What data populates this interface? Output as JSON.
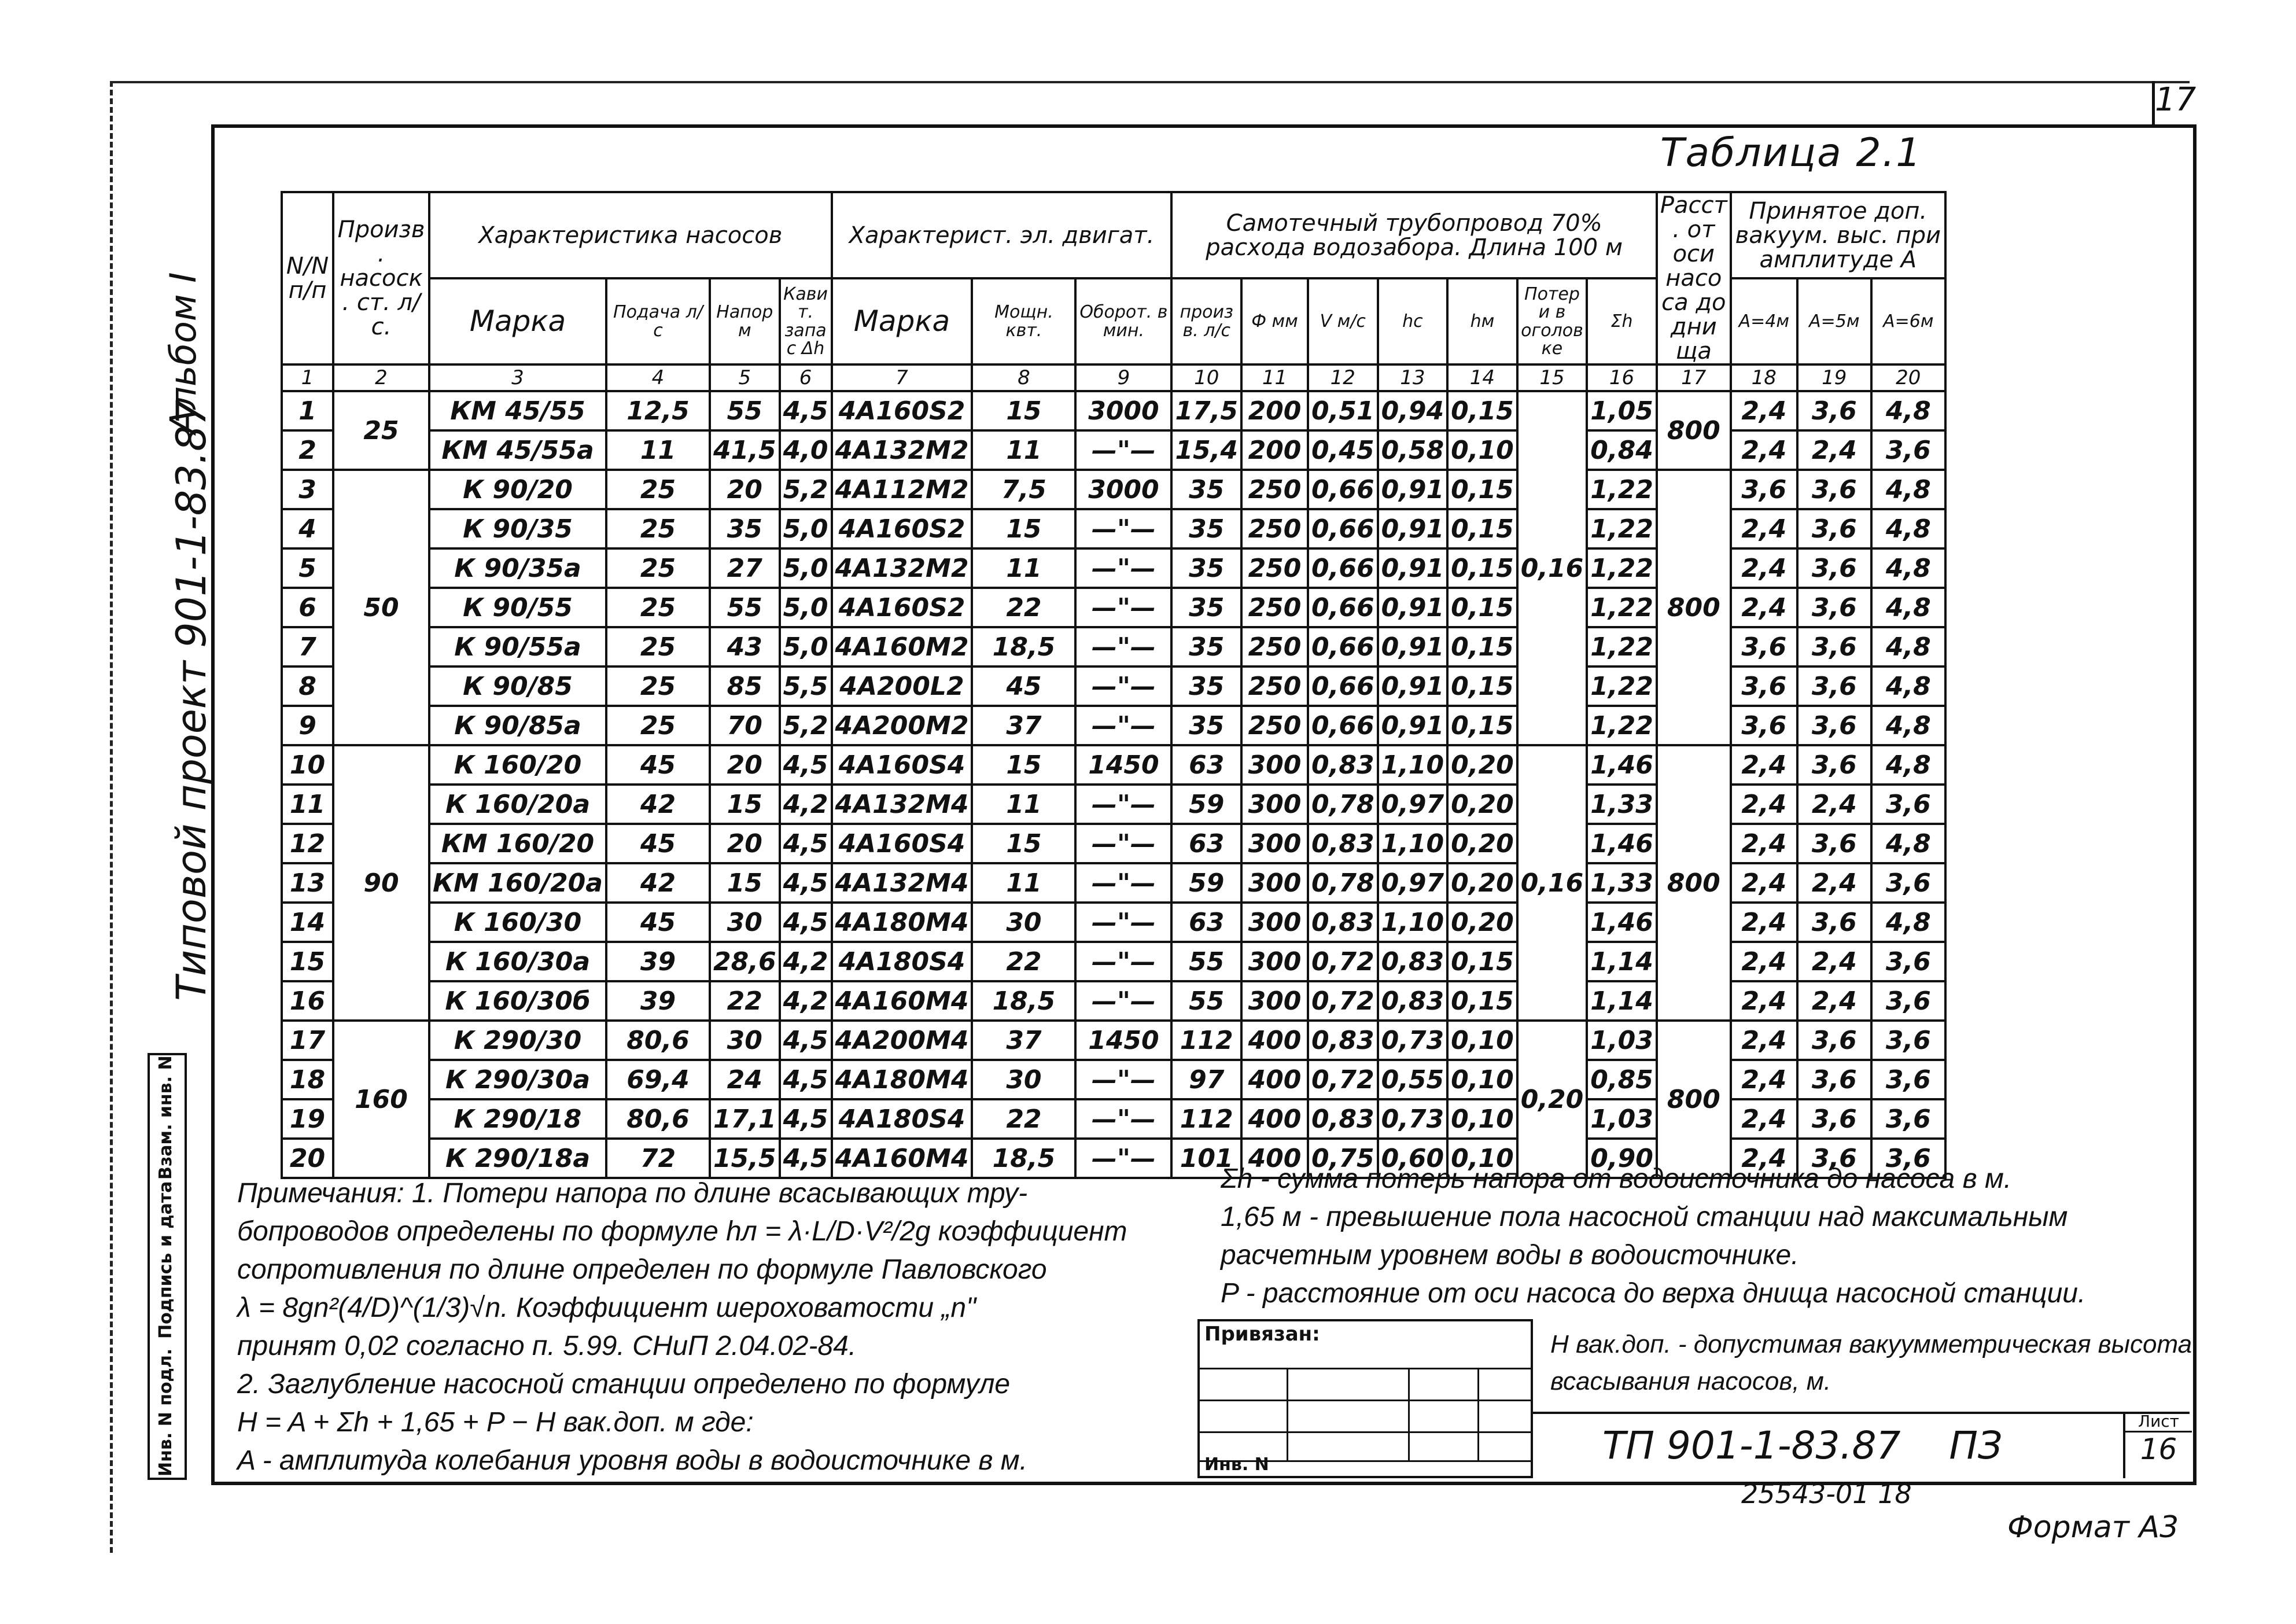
{
  "page_number": "17",
  "table_title": "Таблица 2.1",
  "side": {
    "album": "Альбом I",
    "project": "Типовой проект 901-1-83.87",
    "stamp": [
      "Инв. N подл.",
      "Подпись и дата",
      "Взам. инв. N"
    ]
  },
  "headers": {
    "col1": "N/N п/п",
    "col2": "Произв. насоск. ст. л/с.",
    "pumps": "Характеристика насосов",
    "motor": "Характерист. эл. двигат.",
    "pipe": "Самотечный трубопровод 70% расхода водозабора. Длина 100 м",
    "col17": "Расст. от оси насоса до днища",
    "vac": "Принятое доп. вакуум. выс. при амплитуде А",
    "sub": [
      "Марка",
      "Подача л/с",
      "Напор м",
      "Кавит. запас Δh",
      "Марка",
      "Мощн. квт.",
      "Оборот. в мин.",
      "произв. л/с",
      "Ф мм",
      "V м/с",
      "hс",
      "hм",
      "Потери в оголовке",
      "Σh",
      "А=4м",
      "А=5м",
      "А=6м"
    ],
    "numbers": [
      "1",
      "2",
      "3",
      "4",
      "5",
      "6",
      "7",
      "8",
      "9",
      "10",
      "11",
      "12",
      "13",
      "14",
      "15",
      "16",
      "17",
      "18",
      "19",
      "20"
    ]
  },
  "groups": [
    {
      "capacity": "25",
      "loss": "0,16",
      "distance": "800",
      "rows": [
        [
          "1",
          "КМ 45/55",
          "12,5",
          "55",
          "4,5",
          "4А160S2",
          "15",
          "3000",
          "17,5",
          "200",
          "0,51",
          "0,94",
          "0,15",
          "1,05",
          "2,4",
          "3,6",
          "4,8"
        ],
        [
          "2",
          "КМ 45/55а",
          "11",
          "41,5",
          "4,0",
          "4А132М2",
          "11",
          "—\"—",
          "15,4",
          "200",
          "0,45",
          "0,58",
          "0,10",
          "0,84",
          "2,4",
          "2,4",
          "3,6"
        ]
      ]
    },
    {
      "capacity": "50",
      "loss": "",
      "distance": "800",
      "rows": [
        [
          "3",
          "К 90/20",
          "25",
          "20",
          "5,2",
          "4А112М2",
          "7,5",
          "3000",
          "35",
          "250",
          "0,66",
          "0,91",
          "0,15",
          "1,22",
          "3,6",
          "3,6",
          "4,8"
        ],
        [
          "4",
          "К 90/35",
          "25",
          "35",
          "5,0",
          "4А160S2",
          "15",
          "—\"—",
          "35",
          "250",
          "0,66",
          "0,91",
          "0,15",
          "1,22",
          "2,4",
          "3,6",
          "4,8"
        ],
        [
          "5",
          "К 90/35а",
          "25",
          "27",
          "5,0",
          "4А132М2",
          "11",
          "—\"—",
          "35",
          "250",
          "0,66",
          "0,91",
          "0,15",
          "1,22",
          "2,4",
          "3,6",
          "4,8"
        ],
        [
          "6",
          "К 90/55",
          "25",
          "55",
          "5,0",
          "4А160S2",
          "22",
          "—\"—",
          "35",
          "250",
          "0,66",
          "0,91",
          "0,15",
          "1,22",
          "2,4",
          "3,6",
          "4,8"
        ],
        [
          "7",
          "К 90/55а",
          "25",
          "43",
          "5,0",
          "4А160М2",
          "18,5",
          "—\"—",
          "35",
          "250",
          "0,66",
          "0,91",
          "0,15",
          "1,22",
          "3,6",
          "3,6",
          "4,8"
        ],
        [
          "8",
          "К 90/85",
          "25",
          "85",
          "5,5",
          "4А200L2",
          "45",
          "—\"—",
          "35",
          "250",
          "0,66",
          "0,91",
          "0,15",
          "1,22",
          "3,6",
          "3,6",
          "4,8"
        ],
        [
          "9",
          "К 90/85а",
          "25",
          "70",
          "5,2",
          "4А200М2",
          "37",
          "—\"—",
          "35",
          "250",
          "0,66",
          "0,91",
          "0,15",
          "1,22",
          "3,6",
          "3,6",
          "4,8"
        ]
      ]
    },
    {
      "capacity": "90",
      "loss": "0,16",
      "distance": "800",
      "rows": [
        [
          "10",
          "К 160/20",
          "45",
          "20",
          "4,5",
          "4А160S4",
          "15",
          "1450",
          "63",
          "300",
          "0,83",
          "1,10",
          "0,20",
          "1,46",
          "2,4",
          "3,6",
          "4,8"
        ],
        [
          "11",
          "К 160/20а",
          "42",
          "15",
          "4,2",
          "4А132М4",
          "11",
          "—\"—",
          "59",
          "300",
          "0,78",
          "0,97",
          "0,20",
          "1,33",
          "2,4",
          "2,4",
          "3,6"
        ],
        [
          "12",
          "КМ 160/20",
          "45",
          "20",
          "4,5",
          "4А160S4",
          "15",
          "—\"—",
          "63",
          "300",
          "0,83",
          "1,10",
          "0,20",
          "1,46",
          "2,4",
          "3,6",
          "4,8"
        ],
        [
          "13",
          "КМ 160/20а",
          "42",
          "15",
          "4,5",
          "4А132М4",
          "11",
          "—\"—",
          "59",
          "300",
          "0,78",
          "0,97",
          "0,20",
          "1,33",
          "2,4",
          "2,4",
          "3,6"
        ],
        [
          "14",
          "К 160/30",
          "45",
          "30",
          "4,5",
          "4А180М4",
          "30",
          "—\"—",
          "63",
          "300",
          "0,83",
          "1,10",
          "0,20",
          "1,46",
          "2,4",
          "3,6",
          "4,8"
        ],
        [
          "15",
          "К 160/30а",
          "39",
          "28,6",
          "4,2",
          "4А180S4",
          "22",
          "—\"—",
          "55",
          "300",
          "0,72",
          "0,83",
          "0,15",
          "1,14",
          "2,4",
          "2,4",
          "3,6"
        ],
        [
          "16",
          "К 160/30б",
          "39",
          "22",
          "4,2",
          "4А160М4",
          "18,5",
          "—\"—",
          "55",
          "300",
          "0,72",
          "0,83",
          "0,15",
          "1,14",
          "2,4",
          "2,4",
          "3,6"
        ]
      ]
    },
    {
      "capacity": "160",
      "loss": "0,20",
      "distance": "800",
      "rows": [
        [
          "17",
          "К 290/30",
          "80,6",
          "30",
          "4,5",
          "4А200М4",
          "37",
          "1450",
          "112",
          "400",
          "0,83",
          "0,73",
          "0,10",
          "1,03",
          "2,4",
          "3,6",
          "3,6"
        ],
        [
          "18",
          "К 290/30а",
          "69,4",
          "24",
          "4,5",
          "4А180М4",
          "30",
          "—\"—",
          "97",
          "400",
          "0,72",
          "0,55",
          "0,10",
          "0,85",
          "2,4",
          "3,6",
          "3,6"
        ],
        [
          "19",
          "К 290/18",
          "80,6",
          "17,1",
          "4,5",
          "4А180S4",
          "22",
          "—\"—",
          "112",
          "400",
          "0,83",
          "0,73",
          "0,10",
          "1,03",
          "2,4",
          "3,6",
          "3,6"
        ],
        [
          "20",
          "К 290/18а",
          "72",
          "15,5",
          "4,5",
          "4А160М4",
          "18,5",
          "—\"—",
          "101",
          "400",
          "0,75",
          "0,60",
          "0,10",
          "0,90",
          "2,4",
          "3,6",
          "3,6"
        ]
      ]
    }
  ],
  "notes_left": [
    "Примечания: 1. Потери напора по длине всасывающих тру-",
    "бопроводов определены по формуле hл = λ·L/D·V²/2g  коэффициент",
    "сопротивления по длине определен по формуле Павловского",
    "λ = 8gn²(4/D)^(1/3)√n. Коэффициент шероховатости „n\"",
    "принят 0,02 согласно п. 5.99. СНиП 2.04.02-84.",
    "2. Заглубление насосной станции определено по формуле",
    "H = A + Σh + 1,65 + P − H вак.доп.  м  где:",
    "A - амплитуда колебания уровня воды в водоисточнике в м."
  ],
  "notes_right": [
    "Σh - сумма потерь напора от водоисточника до насоса в м.",
    "1,65 м - превышение пола насосной станции над максимальным",
    "расчетным уровнем воды в водоисточнике.",
    "P - расстояние от оси насоса до верха днища насосной станции.",
    "H вак.доп. - допустимая вакуумметрическая высота",
    "всасывания насосов, м."
  ],
  "titleblock": {
    "bound": "Привязан:",
    "inv": "Инв. N",
    "code": "ТП 901-1-83.87    ПЗ",
    "sheet_label": "Лист",
    "sheet": "16"
  },
  "footer": {
    "order": "25543-01  18",
    "format": "Формат А3"
  }
}
